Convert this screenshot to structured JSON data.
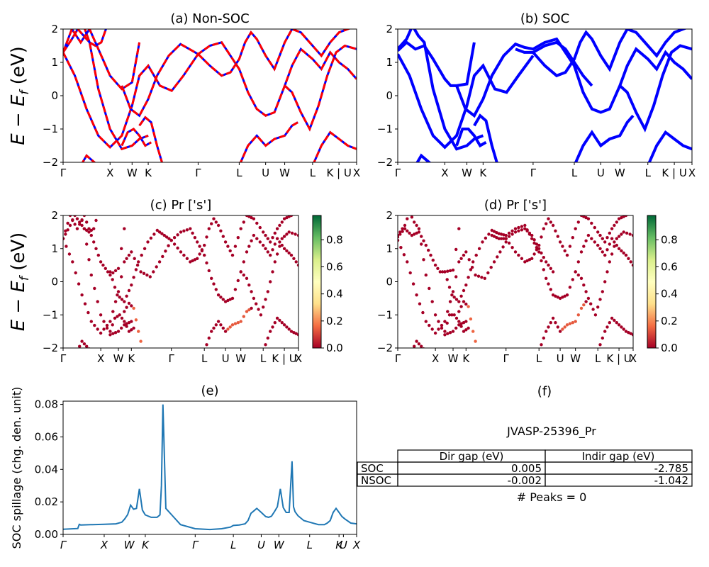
{
  "figure_title": "",
  "chart_data": [
    {
      "id": "a",
      "type": "line",
      "title": "(a) Non-SOC",
      "ylabel": "E − E_f (eV)",
      "ylim": [
        -2,
        2
      ],
      "yticks": [
        -2,
        -1,
        0,
        1,
        2
      ],
      "xlim": [
        0,
        100
      ],
      "kpath_labels": [
        "Γ",
        "X",
        "W",
        "K",
        "Γ",
        "L",
        "U",
        "W",
        "L",
        "K | U",
        "X"
      ],
      "kpath_positions": [
        0,
        16,
        23.5,
        29,
        46,
        60,
        69,
        75.5,
        85,
        94,
        100
      ],
      "series": [
        {
          "color": "#ff0000",
          "style": "dashed",
          "x": [
            0,
            3,
            5,
            7,
            9,
            12,
            16,
            20,
            23.5,
            26,
            29
          ],
          "y": [
            1.3,
            1.7,
            2.0,
            1.8,
            1.6,
            0.2,
            -1.0,
            -1.6,
            -1.5,
            -1.3,
            -1.2
          ]
        },
        {
          "color": "#ff0000",
          "style": "dashed",
          "x": [
            0,
            4,
            8,
            12,
            16,
            20,
            23.5,
            26,
            29,
            33,
            37,
            41,
            46
          ],
          "y": [
            1.3,
            0.6,
            -0.4,
            -1.2,
            -1.55,
            -1.2,
            -0.3,
            0.6,
            0.9,
            0.3,
            0.15,
            0.6,
            1.25
          ]
        },
        {
          "color": "#ff0000",
          "style": "dashed",
          "x": [
            0,
            3,
            6,
            9,
            12,
            14,
            16,
            18,
            20,
            23.5,
            26
          ],
          "y": [
            1.3,
            2.0,
            1.6,
            2.0,
            1.4,
            1.0,
            0.6,
            0.4,
            0.2,
            0.4,
            1.6
          ]
        },
        {
          "color": "#ff0000",
          "style": "dashed",
          "x": [
            7,
            9,
            11,
            13,
            15
          ],
          "y": [
            2.1,
            1.6,
            1.5,
            1.6,
            2.1
          ]
        },
        {
          "color": "#ff0000",
          "style": "dashed",
          "x": [
            20,
            23,
            26,
            29,
            32,
            36,
            40,
            43,
            46,
            50,
            54,
            57,
            60,
            63,
            66,
            69,
            72,
            75.5,
            78,
            81,
            85,
            88,
            91,
            94,
            97,
            100
          ],
          "y": [
            0.3,
            -0.4,
            -0.6,
            -0.1,
            0.6,
            1.2,
            1.55,
            1.4,
            1.25,
            1.5,
            1.6,
            1.2,
            0.8,
            0.1,
            -0.4,
            -0.6,
            -0.5,
            0.3,
            0.9,
            1.4,
            1.1,
            0.8,
            1.3,
            1.0,
            0.8,
            0.5
          ]
        },
        {
          "color": "#ff0000",
          "style": "dashed",
          "x": [
            46,
            50,
            54,
            57,
            60,
            62,
            64,
            66,
            69,
            72,
            75.5,
            78,
            81,
            85,
            88,
            91,
            94,
            97,
            100
          ],
          "y": [
            1.25,
            0.9,
            0.6,
            0.7,
            1.1,
            1.6,
            1.9,
            1.7,
            1.2,
            0.8,
            1.6,
            2.0,
            1.9,
            1.5,
            1.2,
            1.6,
            1.9,
            2.0,
            2.1
          ]
        },
        {
          "color": "#ff0000",
          "style": "dashed",
          "x": [
            20,
            22,
            24,
            26,
            28,
            30
          ],
          "y": [
            -1.5,
            -1.1,
            -1.0,
            -1.2,
            -1.5,
            -1.4
          ]
        },
        {
          "color": "#ff0000",
          "style": "dashed",
          "x": [
            26,
            28,
            30,
            32,
            34
          ],
          "y": [
            -0.9,
            -0.65,
            -0.8,
            -1.5,
            -2.1
          ]
        },
        {
          "color": "#ff0000",
          "style": "dashed",
          "x": [
            60,
            63,
            66,
            69,
            72,
            75.5,
            78,
            80
          ],
          "y": [
            -2.1,
            -1.5,
            -1.2,
            -1.5,
            -1.3,
            -1.2,
            -0.9,
            -0.8
          ]
        },
        {
          "color": "#ff0000",
          "style": "dashed",
          "x": [
            85,
            88,
            91,
            94,
            97,
            100
          ],
          "y": [
            -2.1,
            -1.5,
            -1.1,
            -1.3,
            -1.5,
            -1.6
          ]
        },
        {
          "color": "#ff0000",
          "style": "dashed",
          "x": [
            6,
            8,
            10,
            12
          ],
          "y": [
            -2.1,
            -1.8,
            -1.95,
            -2.1
          ]
        },
        {
          "color": "#ff0000",
          "style": "dashed",
          "x": [
            75.5,
            78,
            81,
            84,
            87,
            90,
            93,
            96,
            100
          ],
          "y": [
            0.3,
            0.1,
            -0.5,
            -1.0,
            -0.3,
            0.6,
            1.3,
            1.5,
            1.4
          ]
        }
      ]
    },
    {
      "id": "b",
      "type": "line",
      "title": "(b) SOC",
      "ylim": [
        -2,
        2
      ],
      "yticks": [
        -2,
        -1,
        0,
        1,
        2
      ],
      "xlim": [
        0,
        100
      ],
      "kpath_labels": [
        "Γ",
        "X",
        "W",
        "K",
        "Γ",
        "L",
        "U",
        "W",
        "L",
        "K | U",
        "X"
      ],
      "kpath_positions": [
        0,
        16,
        23.5,
        29,
        46,
        60,
        69,
        75.5,
        85,
        94,
        100
      ],
      "series": [
        {
          "color": "#0000ff",
          "style": "solid",
          "x": [
            0,
            3,
            5,
            7,
            9,
            12,
            16,
            20,
            23.5,
            26,
            29
          ],
          "y": [
            1.4,
            1.7,
            2.1,
            1.8,
            1.6,
            0.2,
            -1.0,
            -1.6,
            -1.5,
            -1.3,
            -1.2
          ]
        },
        {
          "color": "#0000ff",
          "style": "solid",
          "x": [
            0,
            4,
            8,
            12,
            16,
            20,
            23.5,
            26,
            29,
            33,
            37,
            41,
            46
          ],
          "y": [
            1.25,
            0.6,
            -0.4,
            -1.2,
            -1.55,
            -1.2,
            -0.3,
            0.6,
            0.9,
            0.2,
            0.1,
            0.6,
            1.2
          ]
        },
        {
          "color": "#0000ff",
          "style": "solid",
          "x": [
            0,
            3,
            6,
            9,
            12,
            14,
            16,
            18,
            20,
            23.5,
            26
          ],
          "y": [
            1.35,
            1.6,
            1.4,
            1.5,
            1.1,
            0.8,
            0.5,
            0.3,
            0.3,
            0.35,
            1.6
          ]
        },
        {
          "color": "#0000ff",
          "style": "solid",
          "x": [
            20,
            23,
            26,
            29,
            32,
            36,
            40,
            43,
            46,
            50,
            54,
            57,
            60,
            63,
            66,
            69,
            72,
            75.5,
            78,
            81,
            85,
            88,
            91,
            94,
            97,
            100
          ],
          "y": [
            0.3,
            -0.4,
            -0.6,
            -0.1,
            0.6,
            1.2,
            1.55,
            1.45,
            1.4,
            1.6,
            1.7,
            1.3,
            0.9,
            0.1,
            -0.4,
            -0.5,
            -0.4,
            0.3,
            0.9,
            1.4,
            1.1,
            0.8,
            1.3,
            1.0,
            0.8,
            0.5
          ]
        },
        {
          "color": "#0000ff",
          "style": "solid",
          "x": [
            40,
            43,
            46,
            50,
            54,
            57,
            60,
            63,
            66
          ],
          "y": [
            1.4,
            1.3,
            1.3,
            1.5,
            1.6,
            1.4,
            1.0,
            0.6,
            0.3
          ]
        },
        {
          "color": "#0000ff",
          "style": "solid",
          "x": [
            46,
            50,
            54,
            57,
            60,
            62,
            64,
            66,
            69,
            72,
            75.5,
            78,
            81,
            85,
            88,
            91,
            94,
            97,
            100
          ],
          "y": [
            1.3,
            0.9,
            0.6,
            0.7,
            1.1,
            1.6,
            1.9,
            1.7,
            1.2,
            0.8,
            1.6,
            2.0,
            1.9,
            1.5,
            1.2,
            1.6,
            1.9,
            2.0,
            2.1
          ]
        },
        {
          "color": "#0000ff",
          "style": "solid",
          "x": [
            20,
            22,
            24,
            26,
            28,
            30
          ],
          "y": [
            -1.5,
            -1.0,
            -1.0,
            -1.2,
            -1.5,
            -1.4
          ]
        },
        {
          "color": "#0000ff",
          "style": "solid",
          "x": [
            26,
            28,
            30,
            32,
            34
          ],
          "y": [
            -0.9,
            -0.6,
            -0.75,
            -1.5,
            -2.1
          ]
        },
        {
          "color": "#0000ff",
          "style": "solid",
          "x": [
            60,
            63,
            66,
            69,
            72,
            75.5,
            78,
            80
          ],
          "y": [
            -2.1,
            -1.5,
            -1.1,
            -1.5,
            -1.3,
            -1.2,
            -0.8,
            -0.6
          ]
        },
        {
          "color": "#0000ff",
          "style": "solid",
          "x": [
            85,
            88,
            91,
            94,
            97,
            100
          ],
          "y": [
            -2.1,
            -1.5,
            -1.1,
            -1.3,
            -1.5,
            -1.6
          ]
        },
        {
          "color": "#0000ff",
          "style": "solid",
          "x": [
            6,
            8,
            10,
            12
          ],
          "y": [
            -2.1,
            -1.8,
            -1.95,
            -2.1
          ]
        },
        {
          "color": "#0000ff",
          "style": "solid",
          "x": [
            75.5,
            78,
            81,
            84,
            87,
            90,
            93,
            96,
            100
          ],
          "y": [
            0.3,
            0.1,
            -0.5,
            -1.0,
            -0.3,
            0.6,
            1.3,
            1.5,
            1.4
          ]
        }
      ]
    },
    {
      "id": "c",
      "type": "scatter",
      "title": "(c)  Pr ['s']",
      "ylabel": "E − E_f (eV)",
      "ylim": [
        -2,
        2
      ],
      "yticks": [
        -2,
        -1,
        0,
        1,
        2
      ],
      "xlim": [
        0,
        100
      ],
      "kpath_labels": [
        "Γ",
        "X",
        "W",
        "K",
        "Γ",
        "L",
        "U",
        "W",
        "L",
        "K | U",
        "X"
      ],
      "kpath_positions": [
        0,
        16,
        23.5,
        29,
        46,
        60,
        69,
        75.5,
        85,
        94,
        100
      ],
      "colorbar": {
        "ticks": [
          0.0,
          0.2,
          0.4,
          0.6,
          0.8
        ],
        "range": [
          0,
          0.98
        ],
        "colormap": [
          "#a50026",
          "#f46d43",
          "#fee08b",
          "#ffffbf",
          "#d9ef8b",
          "#66bd63",
          "#006837"
        ]
      },
      "series_ref": "a",
      "highlight_weight": 0.15
    },
    {
      "id": "d",
      "type": "scatter",
      "title": "(d) Pr ['s']",
      "ylim": [
        -2,
        2
      ],
      "yticks": [
        -2,
        -1,
        0,
        1,
        2
      ],
      "xlim": [
        0,
        100
      ],
      "kpath_labels": [
        "Γ",
        "X",
        "W",
        "K",
        "Γ",
        "L",
        "U",
        "W",
        "L",
        "K | U",
        "X"
      ],
      "kpath_positions": [
        0,
        16,
        23.5,
        29,
        46,
        60,
        69,
        75.5,
        85,
        94,
        100
      ],
      "colorbar": {
        "ticks": [
          0.0,
          0.2,
          0.4,
          0.6,
          0.8
        ],
        "range": [
          0,
          0.98
        ],
        "colormap": [
          "#a50026",
          "#f46d43",
          "#fee08b",
          "#ffffbf",
          "#d9ef8b",
          "#66bd63",
          "#006837"
        ]
      },
      "series_ref": "b",
      "highlight_weight": 0.15
    },
    {
      "id": "e",
      "type": "line",
      "title": "(e)",
      "ylabel": "SOC spillage (chg. den. unit)",
      "ylim": [
        0,
        0.082
      ],
      "yticks": [
        0.0,
        0.02,
        0.04,
        0.06,
        0.08
      ],
      "ytick_labels": [
        "0.00",
        "0.02",
        "0.04",
        "0.06",
        "0.08"
      ],
      "xlim": [
        0,
        100
      ],
      "kpath_labels": [
        "Γ",
        "X",
        "W",
        "K",
        "Γ",
        "L",
        "U",
        "W",
        "L",
        "K",
        "U",
        "X"
      ],
      "kpath_positions": [
        0,
        14,
        22.5,
        28,
        45,
        58,
        67.5,
        73.5,
        84,
        94,
        95.5,
        100
      ],
      "series": [
        {
          "color": "#1f77b4",
          "x": [
            0,
            5,
            5.5,
            6,
            10,
            14,
            18,
            20,
            21,
            22,
            23,
            24,
            25,
            26,
            27,
            28,
            30,
            32,
            33,
            33.5,
            34,
            35,
            37,
            40,
            45,
            50,
            54,
            57,
            58,
            60,
            62,
            63,
            64,
            65,
            66,
            67.5,
            69,
            70,
            71,
            72,
            73,
            74,
            75,
            76,
            77,
            78,
            78.5,
            79,
            80,
            82,
            84,
            87,
            89,
            90,
            91,
            92,
            93,
            94,
            95,
            96,
            98,
            100
          ],
          "y": [
            0.0032,
            0.0036,
            0.0062,
            0.0058,
            0.006,
            0.0062,
            0.0065,
            0.0075,
            0.0095,
            0.0122,
            0.018,
            0.0155,
            0.016,
            0.028,
            0.015,
            0.012,
            0.0105,
            0.0105,
            0.012,
            0.03,
            0.08,
            0.016,
            0.012,
            0.006,
            0.0035,
            0.003,
            0.0035,
            0.0045,
            0.0055,
            0.0058,
            0.0065,
            0.0085,
            0.013,
            0.0145,
            0.016,
            0.0135,
            0.011,
            0.0105,
            0.0112,
            0.014,
            0.017,
            0.028,
            0.0165,
            0.0135,
            0.0135,
            0.045,
            0.017,
            0.014,
            0.0115,
            0.0085,
            0.0075,
            0.006,
            0.006,
            0.007,
            0.0085,
            0.0135,
            0.016,
            0.0135,
            0.011,
            0.0095,
            0.007,
            0.0065
          ]
        }
      ]
    }
  ],
  "panel_f": {
    "title": "(f)",
    "material_id": "JVASP-25396_Pr",
    "table": {
      "headers": [
        "Dir gap (eV)",
        "Indir gap (eV)"
      ],
      "rows": [
        {
          "label": "SOC",
          "dir": "0.005",
          "indir": "-2.785"
        },
        {
          "label": "NSOC",
          "dir": "-0.002",
          "indir": "-1.042"
        }
      ]
    },
    "peaks_text": "# Peaks = 0"
  }
}
